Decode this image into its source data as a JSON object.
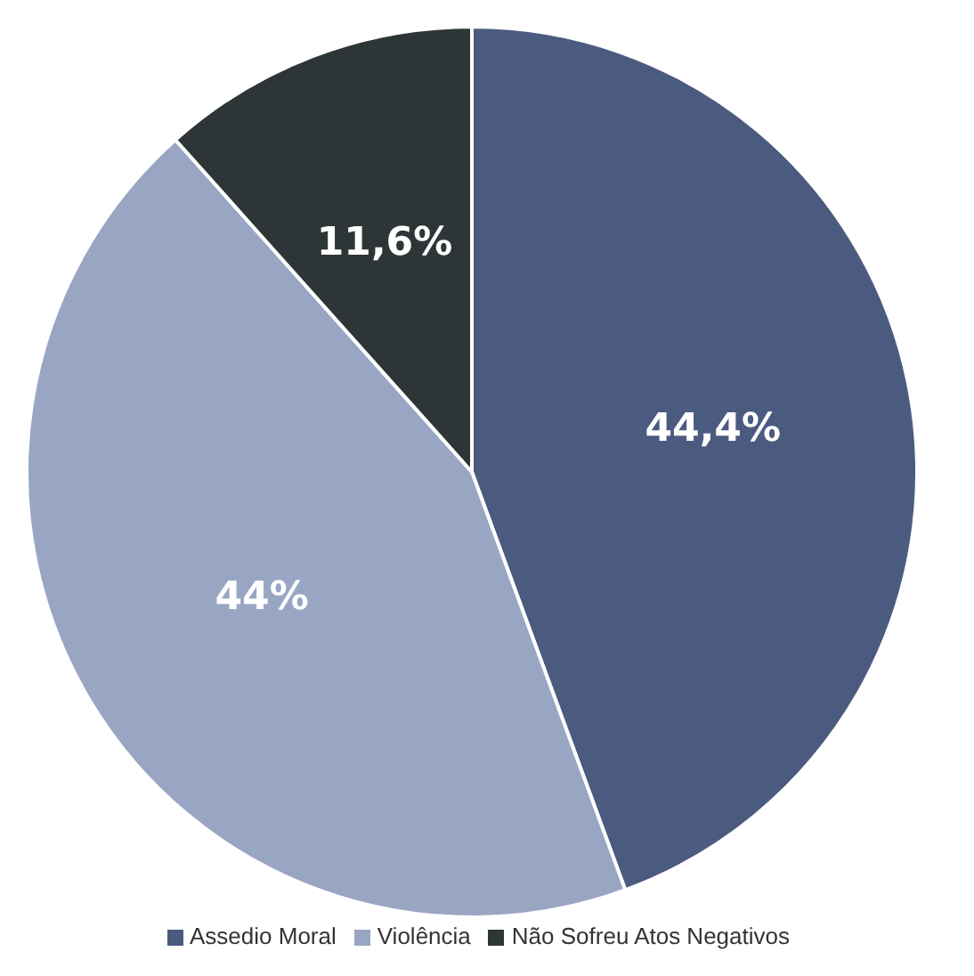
{
  "chart_data": {
    "type": "pie",
    "categories": [
      "Assedio Moral",
      "Violência",
      "Não Sofreu Atos Negativos"
    ],
    "values": [
      44.4,
      44,
      11.6
    ],
    "colors": [
      "#4b5b80",
      "#99a6c3",
      "#2e3537"
    ],
    "value_labels": [
      "44,4%",
      "44%",
      "11,6%"
    ],
    "legend": "bottom"
  }
}
